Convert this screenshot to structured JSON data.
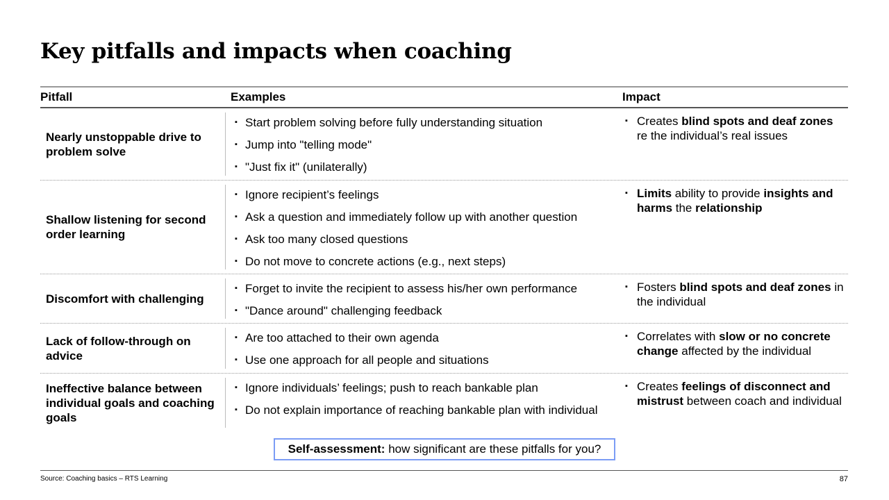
{
  "title": "Key pitfalls and impacts when coaching",
  "headers": {
    "pitfall": "Pitfall",
    "examples": "Examples",
    "impact": "Impact"
  },
  "rows": [
    {
      "pitfall": "Nearly unstoppable drive to problem solve",
      "examples": [
        "Start problem solving before fully understanding situation",
        "Jump into \"telling mode\"",
        "\"Just fix it\" (unilaterally)"
      ],
      "impact": [
        {
          "t": "Creates ",
          "b": false
        },
        {
          "t": "blind spots and deaf zones",
          "b": true
        },
        {
          "t": " re the individual’s real issues",
          "b": false
        }
      ]
    },
    {
      "pitfall": "Shallow listening for second order learning",
      "examples": [
        "Ignore recipient’s feelings",
        "Ask a question and immediately follow up with another question",
        "Ask too many closed questions",
        "Do not move to concrete actions (e.g., next steps)"
      ],
      "impact": [
        {
          "t": "Limits",
          "b": true
        },
        {
          "t": " ability to provide ",
          "b": false
        },
        {
          "t": "insights and harms",
          "b": true
        },
        {
          "t": " the ",
          "b": false
        },
        {
          "t": "relationship",
          "b": true
        }
      ]
    },
    {
      "pitfall": "Discomfort with challenging",
      "examples": [
        "Forget to invite the recipient to assess his/her own performance",
        "\"Dance around\" challenging feedback"
      ],
      "impact": [
        {
          "t": "Fosters ",
          "b": false
        },
        {
          "t": "blind spots and deaf zones",
          "b": true
        },
        {
          "t": " in the individual",
          "b": false
        }
      ]
    },
    {
      "pitfall": "Lack of follow-through on advice",
      "examples": [
        "Are too attached to their own agenda",
        "Use one approach for all people and situations"
      ],
      "impact": [
        {
          "t": "Correlates with ",
          "b": false
        },
        {
          "t": "slow or no concrete change",
          "b": true
        },
        {
          "t": " affected by the individual",
          "b": false
        }
      ]
    },
    {
      "pitfall": "Ineffective balance between individual goals and coaching goals",
      "examples": [
        "Ignore individuals’ feelings; push to reach bankable plan",
        "Do not explain importance of reaching bankable plan with individual"
      ],
      "impact": [
        {
          "t": "Creates ",
          "b": false
        },
        {
          "t": "feelings of disconnect and mistrust",
          "b": true
        },
        {
          "t": " between coach and individual",
          "b": false
        }
      ]
    }
  ],
  "callout": {
    "bold": "Self-assessment:",
    "text": " how significant are these pitfalls for you?"
  },
  "source": "Source: Coaching basics – RTS Learning",
  "page_number": "87",
  "bullet": "▪",
  "colors": {
    "callout_border": "#7b9cf5"
  }
}
